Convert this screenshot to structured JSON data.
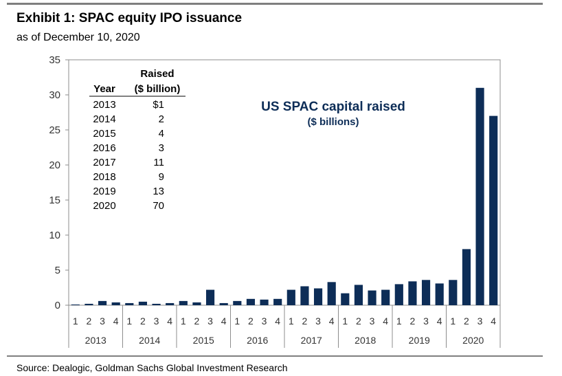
{
  "exhibit": {
    "title": "Exhibit 1: SPAC equity IPO issuance",
    "subtitle": "as of December 10, 2020",
    "source": "Source: Dealogic, Goldman Sachs Global Investment Research"
  },
  "chart_data": {
    "type": "bar",
    "title": "US SPAC capital raised",
    "subtitle": "($ billions)",
    "xlabel": "",
    "ylabel": "",
    "ylim": [
      0,
      35
    ],
    "yticks": [
      0,
      5,
      10,
      15,
      20,
      25,
      30,
      35
    ],
    "grid": false,
    "bar_color": "#0d2d57",
    "annotation_color": "#0d2d57",
    "years": [
      "2013",
      "2014",
      "2015",
      "2016",
      "2017",
      "2018",
      "2019",
      "2020"
    ],
    "categories": [
      "1",
      "2",
      "3",
      "4",
      "1",
      "2",
      "3",
      "4",
      "1",
      "2",
      "3",
      "4",
      "1",
      "2",
      "3",
      "4",
      "1",
      "2",
      "3",
      "4",
      "1",
      "2",
      "3",
      "4",
      "1",
      "2",
      "3",
      "4",
      "1",
      "2",
      "3",
      "4"
    ],
    "values": [
      0.1,
      0.2,
      0.6,
      0.4,
      0.3,
      0.5,
      0.2,
      0.3,
      0.6,
      0.4,
      2.2,
      0.3,
      0.6,
      0.9,
      0.8,
      0.9,
      2.2,
      2.7,
      2.4,
      3.3,
      1.7,
      2.9,
      2.1,
      2.2,
      3.0,
      3.4,
      3.6,
      3.1,
      3.6,
      8.0,
      31.0,
      27.0
    ],
    "table": {
      "header_top": "Raised",
      "col_year": "Year",
      "col_raised": "($ billion)",
      "rows": [
        {
          "year": "2013",
          "raised": "$1"
        },
        {
          "year": "2014",
          "raised": "2"
        },
        {
          "year": "2015",
          "raised": "4"
        },
        {
          "year": "2016",
          "raised": "3"
        },
        {
          "year": "2017",
          "raised": "11"
        },
        {
          "year": "2018",
          "raised": "9"
        },
        {
          "year": "2019",
          "raised": "13"
        },
        {
          "year": "2020",
          "raised": "70"
        }
      ]
    }
  }
}
